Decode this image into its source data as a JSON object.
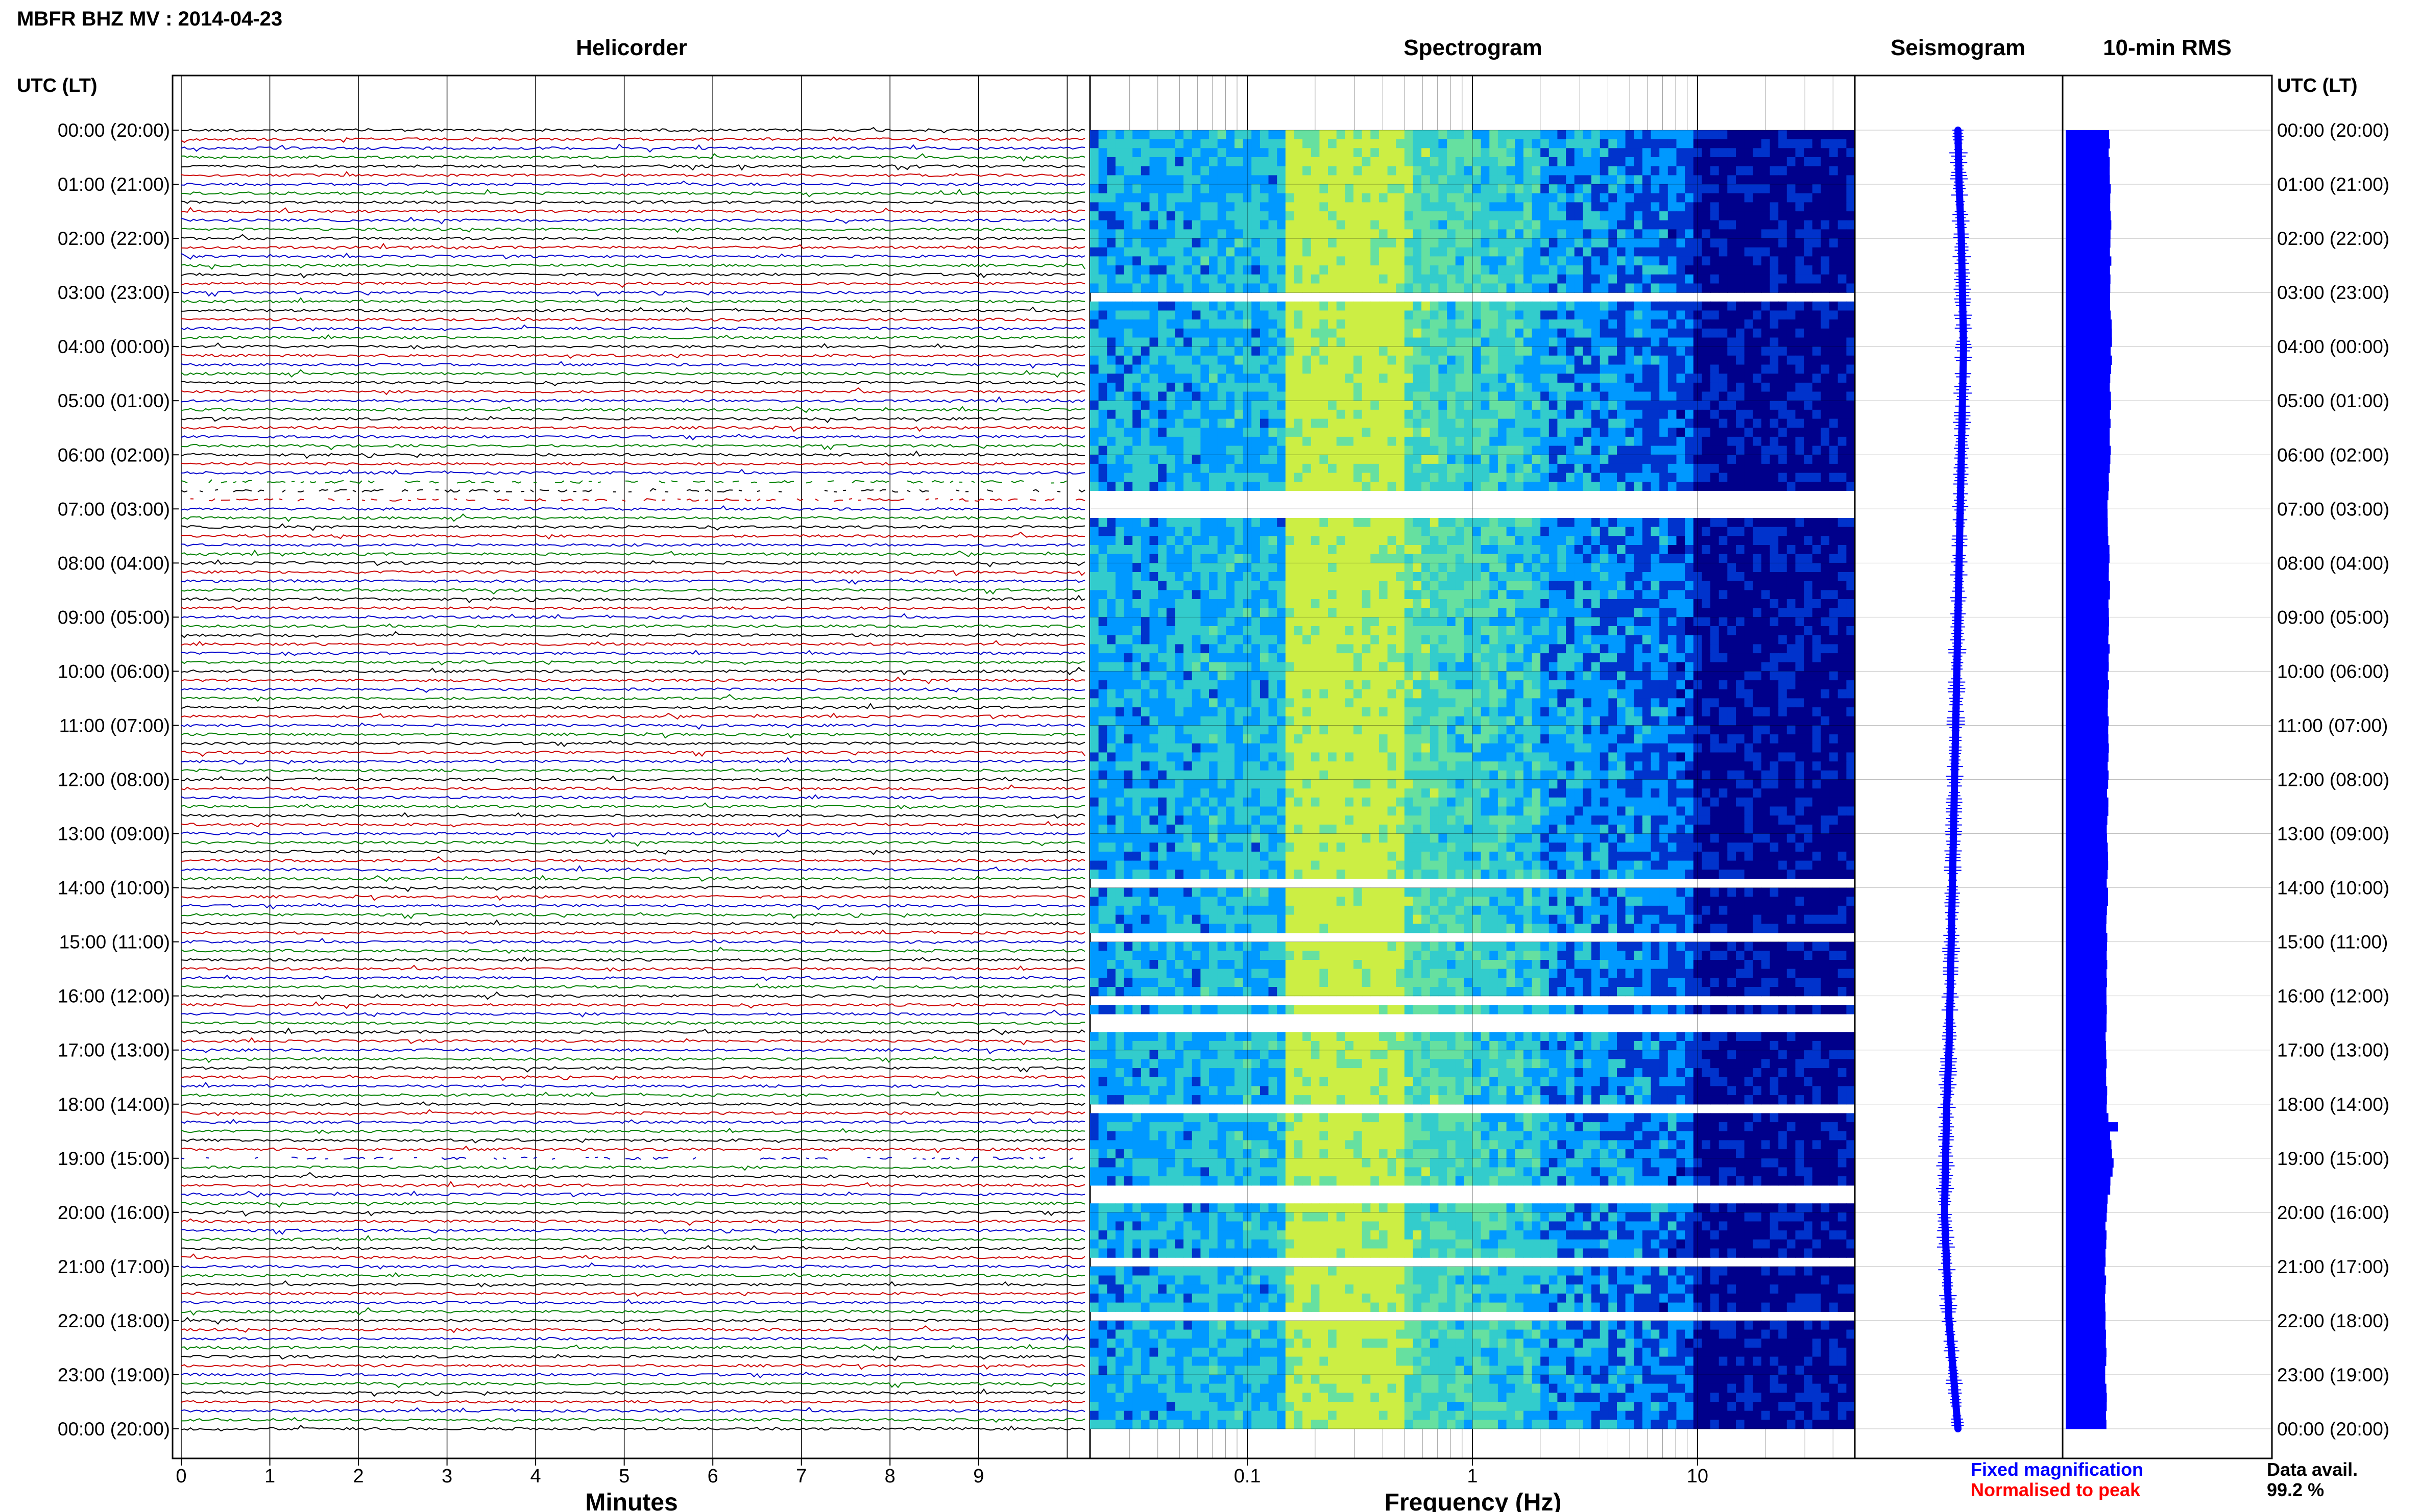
{
  "title": "MBFR BHZ MV : 2014-04-23",
  "time_axis_label": "UTC (LT)",
  "time_labels": [
    "00:00 (20:00)",
    "01:00 (21:00)",
    "02:00 (22:00)",
    "03:00 (23:00)",
    "04:00 (00:00)",
    "05:00 (01:00)",
    "06:00 (02:00)",
    "07:00 (03:00)",
    "08:00 (04:00)",
    "09:00 (05:00)",
    "10:00 (06:00)",
    "11:00 (07:00)",
    "12:00 (08:00)",
    "13:00 (09:00)",
    "14:00 (10:00)",
    "15:00 (11:00)",
    "16:00 (12:00)",
    "17:00 (13:00)",
    "18:00 (14:00)",
    "19:00 (15:00)",
    "20:00 (16:00)",
    "21:00 (17:00)",
    "22:00 (18:00)",
    "23:00 (19:00)",
    "00:00 (20:00)"
  ],
  "panels": {
    "helicorder": {
      "title": "Helicorder",
      "xlabel": "Minutes",
      "xticks": [
        "0",
        "1",
        "2",
        "3",
        "4",
        "5",
        "6",
        "7",
        "8",
        "9"
      ]
    },
    "spectrogram": {
      "title": "Spectrogram",
      "xlabel": "Frequency (Hz)",
      "xticks": [
        "0.1",
        "1",
        "10"
      ]
    },
    "seismogram": {
      "title": "Seismogram"
    },
    "rms": {
      "title": "10-min RMS"
    }
  },
  "footer": {
    "fixed_label": "Fixed magnification",
    "normalised_label": "Normalised to peak",
    "data_avail_label": "Data avail.",
    "data_avail_value": "99.2 %"
  },
  "colors": {
    "trace_cycle": [
      "#000000",
      "#cc0000",
      "#0000cc",
      "#008000"
    ],
    "seismogram": "#0000ff",
    "rms_bars": "#0000ff",
    "fixed_label": "#0000ff",
    "normalised_label": "#ff0000",
    "spectrogram_colormap": [
      "#00008b",
      "#0033cc",
      "#0099ff",
      "#33cccc",
      "#66e0a0",
      "#ccee44"
    ]
  },
  "chart_data": [
    {
      "type": "line",
      "title": "Helicorder",
      "xlabel": "Minutes",
      "x_range": [
        0,
        10
      ],
      "rows_per_hour": 6,
      "row_minutes": 10,
      "hours": 24,
      "data_gaps": [
        {
          "utc": "06:30-07:00"
        },
        {
          "utc": "19:00-19:10"
        }
      ]
    },
    {
      "type": "heatmap",
      "title": "Spectrogram",
      "xlabel": "Frequency (Hz)",
      "x_scale": "log",
      "x_range": [
        0.02,
        50
      ],
      "energy_peak_band_hz": [
        0.15,
        0.5
      ],
      "low_energy_above_hz": 10,
      "gap_rows_utc": [
        "02:55",
        "06:40",
        "06:50",
        "06:55",
        "07:00",
        "13:45",
        "14:50",
        "15:55",
        "16:15",
        "16:25",
        "17:55",
        "19:25",
        "19:35",
        "20:45",
        "21:50",
        "00:00"
      ]
    },
    {
      "type": "line",
      "title": "Seismogram",
      "description_of_trend": "slow long-period drift",
      "x_offsets_by_hour": [
        0.0,
        0.1,
        0.3,
        0.4,
        0.5,
        0.4,
        0.3,
        0.2,
        0.1,
        0.0,
        -0.1,
        -0.2,
        -0.3,
        -0.4,
        -0.5,
        -0.6,
        -0.7,
        -0.8,
        -1.0,
        -1.1,
        -1.2,
        -1.0,
        -0.8,
        -0.4,
        0.0
      ]
    },
    {
      "type": "bar",
      "title": "10-min RMS",
      "interval_minutes": 10,
      "hourly_level": [
        1.0,
        1.02,
        1.04,
        1.03,
        1.05,
        1.03,
        1.02,
        0.95,
        1.01,
        1.0,
        0.99,
        0.98,
        0.97,
        0.96,
        0.96,
        0.95,
        0.94,
        0.93,
        0.95,
        1.1,
        0.93,
        0.92,
        0.93,
        0.93,
        0.93
      ],
      "peak_utc": "18:20"
    }
  ]
}
